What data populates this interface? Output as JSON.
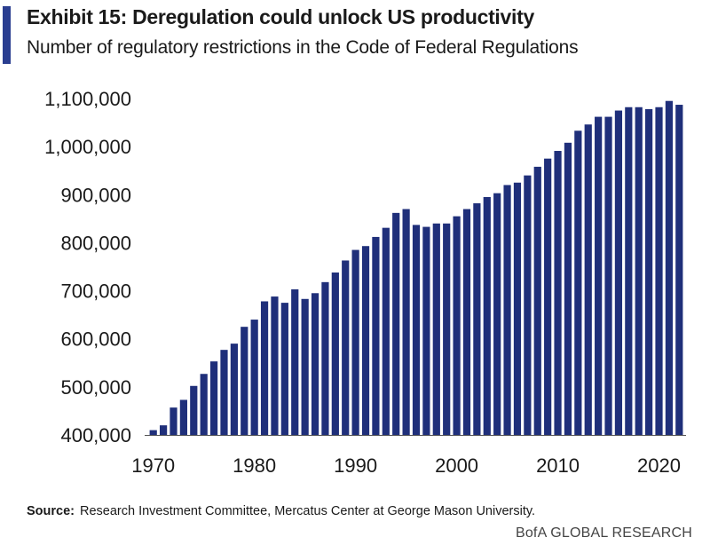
{
  "header": {
    "title": "Exhibit 15: Deregulation could unlock US productivity",
    "subtitle": "Number of regulatory restrictions in the Code of Federal Regulations",
    "accent_color": "#2a3e90"
  },
  "footer": {
    "source_label": "Source:",
    "source_text": "Research Investment Committee, Mercatus Center at George Mason University.",
    "brand": "BofA GLOBAL RESEARCH"
  },
  "chart_data": {
    "type": "bar",
    "title": "Exhibit 15: Deregulation could unlock US productivity",
    "subtitle": "Number of regulatory restrictions in the Code of Federal Regulations",
    "xlabel": "",
    "ylabel": "",
    "bar_color": "#1f2f7a",
    "ylim": [
      400000,
      1100000
    ],
    "yticks": [
      400000,
      500000,
      600000,
      700000,
      800000,
      900000,
      1000000,
      1100000
    ],
    "ytick_labels": [
      "400,000",
      "500,000",
      "600,000",
      "700,000",
      "800,000",
      "900,000",
      "1,000,000",
      "1,100,000"
    ],
    "xticks": [
      1970,
      1980,
      1990,
      2000,
      2010,
      2020
    ],
    "xtick_labels": [
      "1970",
      "1980",
      "1990",
      "2000",
      "2010",
      "2020"
    ],
    "grid": false,
    "categories": [
      1970,
      1971,
      1972,
      1973,
      1974,
      1975,
      1976,
      1977,
      1978,
      1979,
      1980,
      1981,
      1982,
      1983,
      1984,
      1985,
      1986,
      1987,
      1988,
      1989,
      1990,
      1991,
      1992,
      1993,
      1994,
      1995,
      1996,
      1997,
      1998,
      1999,
      2000,
      2001,
      2002,
      2003,
      2004,
      2005,
      2006,
      2007,
      2008,
      2009,
      2010,
      2011,
      2012,
      2013,
      2014,
      2015,
      2016,
      2017,
      2018,
      2019,
      2020,
      2021,
      2022
    ],
    "values": [
      410000,
      420000,
      457000,
      473000,
      502000,
      527000,
      553000,
      577000,
      590000,
      625000,
      640000,
      678000,
      688000,
      675000,
      703000,
      683000,
      695000,
      718000,
      738000,
      763000,
      785000,
      793000,
      812000,
      831000,
      862000,
      870000,
      837000,
      833000,
      840000,
      840000,
      855000,
      870000,
      882000,
      895000,
      903000,
      920000,
      925000,
      940000,
      958000,
      975000,
      991000,
      1008000,
      1033000,
      1046000,
      1062000,
      1062000,
      1075000,
      1082000,
      1082000,
      1078000,
      1082000,
      1095000,
      1087000
    ]
  }
}
